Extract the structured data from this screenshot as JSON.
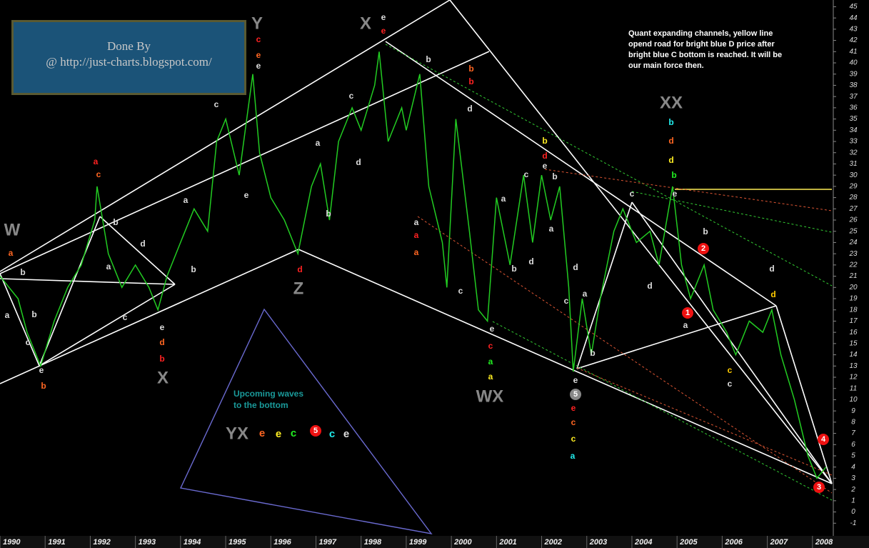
{
  "chart_data": {
    "type": "line",
    "color": "#22cc22",
    "x": [
      1990.0,
      1990.4,
      1990.6,
      1990.9,
      1991.2,
      1991.5,
      1991.8,
      1992.1,
      1992.15,
      1992.4,
      1992.7,
      1993.0,
      1993.3,
      1993.5,
      1993.7,
      1994.0,
      1994.3,
      1994.6,
      1994.8,
      1995.0,
      1995.3,
      1995.6,
      1995.75,
      1996.0,
      1996.3,
      1996.6,
      1996.9,
      1997.1,
      1997.3,
      1997.5,
      1997.8,
      1998.0,
      1998.3,
      1998.4,
      1998.6,
      1998.9,
      1999.0,
      1999.3,
      1999.5,
      1999.8,
      1999.9,
      2000.1,
      2000.4,
      2000.6,
      2000.8,
      2001.0,
      2001.3,
      2001.6,
      2001.8,
      2002.0,
      2002.2,
      2002.4,
      2002.6,
      2002.7,
      2002.9,
      2003.1,
      2003.3,
      2003.6,
      2003.8,
      2004.1,
      2004.4,
      2004.6,
      2004.9,
      2005.1,
      2005.3,
      2005.6,
      2005.8,
      2006.1,
      2006.3,
      2006.6,
      2006.9,
      2007.1,
      2007.3,
      2007.6,
      2007.9,
      2008.1,
      2008.3
    ],
    "values": [
      21,
      19,
      16,
      13,
      17,
      20,
      22,
      26,
      29,
      23,
      20,
      22,
      20,
      18,
      21,
      24,
      27,
      25,
      33,
      35,
      30,
      39,
      32,
      28,
      26,
      23,
      29,
      31,
      26,
      33,
      36,
      34,
      38,
      41,
      33,
      36,
      34,
      39,
      29,
      24,
      20,
      35,
      25,
      18,
      17,
      28,
      22,
      30,
      24,
      30,
      26,
      29,
      20,
      12.5,
      19,
      14,
      19,
      25,
      27,
      24,
      25,
      22,
      29,
      22,
      19,
      22,
      18,
      16,
      14,
      17,
      16,
      18,
      14,
      10,
      5,
      3,
      4
    ],
    "xlim": [
      1990,
      2008.43
    ],
    "ylim": [
      -2,
      45.6
    ],
    "xticks": [
      1990,
      1991,
      1992,
      1993,
      1994,
      1995,
      1996,
      1997,
      1998,
      1999,
      2000,
      2001,
      2002,
      2003,
      2004,
      2005,
      2006,
      2007,
      2008
    ],
    "yticks": [
      -1,
      0,
      1,
      2,
      3,
      4,
      5,
      6,
      7,
      8,
      9,
      10,
      11,
      12,
      13,
      14,
      15,
      16,
      17,
      18,
      19,
      20,
      21,
      22,
      23,
      24,
      25,
      26,
      27,
      28,
      29,
      30,
      31,
      32,
      33,
      34,
      35,
      36,
      37,
      38,
      39,
      40,
      41,
      42,
      43,
      44,
      45
    ],
    "watermark": [
      "Done By",
      "@ http://just-charts.blogspot.com/"
    ],
    "note": [
      "Quant expanding channels, yellow line",
      "opend road for bright blue D price after",
      "bright blue C bottom is reached. It will be",
      "our main force then."
    ],
    "upcoming": [
      "Upcoming waves",
      "to the bottom"
    ],
    "annotations": [
      {
        "text": "W",
        "color": "#888888"
      },
      {
        "text": "X",
        "color": "#888888"
      },
      {
        "text": "Y",
        "color": "#888888"
      },
      {
        "text": "Z",
        "color": "#888888"
      },
      {
        "text": "X",
        "color": "#888888"
      },
      {
        "text": "WX",
        "color": "#888888"
      },
      {
        "text": "XX",
        "color": "#888888"
      },
      {
        "text": "YX",
        "color": "#888888"
      },
      {
        "text": "a",
        "color": "#ff6622"
      },
      {
        "text": "b",
        "color": "#dddddd"
      },
      {
        "text": "a",
        "color": "#dddddd"
      },
      {
        "text": "b",
        "color": "#dddddd"
      },
      {
        "text": "c",
        "color": "#dddddd"
      },
      {
        "text": "e",
        "color": "#dddddd"
      },
      {
        "text": "b",
        "color": "#ff6622"
      },
      {
        "text": "a",
        "color": "#ff2222"
      },
      {
        "text": "c",
        "color": "#ff6622"
      },
      {
        "text": "b",
        "color": "#dddddd"
      },
      {
        "text": "a",
        "color": "#dddddd"
      },
      {
        "text": "d",
        "color": "#dddddd"
      },
      {
        "text": "c",
        "color": "#dddddd"
      },
      {
        "text": "e",
        "color": "#dddddd"
      },
      {
        "text": "d",
        "color": "#ff6622"
      },
      {
        "text": "b",
        "color": "#ff2222"
      },
      {
        "text": "a",
        "color": "#dddddd"
      },
      {
        "text": "b",
        "color": "#dddddd"
      },
      {
        "text": "c",
        "color": "#dddddd"
      },
      {
        "text": "c",
        "color": "#ff2222"
      },
      {
        "text": "e",
        "color": "#ff6622"
      },
      {
        "text": "e",
        "color": "#dddddd"
      },
      {
        "text": "e",
        "color": "#dddddd"
      },
      {
        "text": "a",
        "color": "#dddddd"
      },
      {
        "text": "b",
        "color": "#dddddd"
      },
      {
        "text": "d",
        "color": "#ff2222"
      },
      {
        "text": "c",
        "color": "#dddddd"
      },
      {
        "text": "d",
        "color": "#dddddd"
      },
      {
        "text": "e",
        "color": "#dddddd"
      },
      {
        "text": "e",
        "color": "#ff2222"
      },
      {
        "text": "b",
        "color": "#dddddd"
      },
      {
        "text": "b",
        "color": "#ff6622"
      },
      {
        "text": "b",
        "color": "#ff2222"
      },
      {
        "text": "d",
        "color": "#dddddd"
      },
      {
        "text": "a",
        "color": "#dddddd"
      },
      {
        "text": "a",
        "color": "#ff2222"
      },
      {
        "text": "a",
        "color": "#ff6622"
      },
      {
        "text": "c",
        "color": "#dddddd"
      },
      {
        "text": "a",
        "color": "#dddddd"
      },
      {
        "text": "e",
        "color": "#dddddd"
      },
      {
        "text": "c",
        "color": "#ff2222"
      },
      {
        "text": "a",
        "color": "#22ee22"
      },
      {
        "text": "a",
        "color": "#ffee22"
      },
      {
        "text": "b",
        "color": "#dddddd"
      },
      {
        "text": "d",
        "color": "#dddddd"
      },
      {
        "text": "c",
        "color": "#dddddd"
      },
      {
        "text": "b",
        "color": "#dddddd"
      },
      {
        "text": "e",
        "color": "#dddddd"
      },
      {
        "text": "b",
        "color": "#ffee22"
      },
      {
        "text": "d",
        "color": "#ff2222"
      },
      {
        "text": "a",
        "color": "#dddddd"
      },
      {
        "text": "c",
        "color": "#dddddd"
      },
      {
        "text": "d",
        "color": "#dddddd"
      },
      {
        "text": "a",
        "color": "#dddddd"
      },
      {
        "text": "b",
        "color": "#dddddd"
      },
      {
        "text": "e",
        "color": "#dddddd"
      },
      {
        "text": "5",
        "circle": "#888888"
      },
      {
        "text": "e",
        "color": "#ff2222"
      },
      {
        "text": "c",
        "color": "#ff6622"
      },
      {
        "text": "c",
        "color": "#ffee22"
      },
      {
        "text": "a",
        "color": "#22eeee"
      },
      {
        "text": "c",
        "color": "#dddddd"
      },
      {
        "text": "e",
        "color": "#dddddd"
      },
      {
        "text": "d",
        "color": "#dddddd"
      },
      {
        "text": "b",
        "color": "#22eeee"
      },
      {
        "text": "d",
        "color": "#ff6622"
      },
      {
        "text": "d",
        "color": "#ffee22"
      },
      {
        "text": "b",
        "color": "#22ee22"
      },
      {
        "text": "b",
        "color": "#dddddd"
      },
      {
        "text": "2",
        "circle": "#ee1111"
      },
      {
        "text": "1",
        "circle": "#ee1111"
      },
      {
        "text": "a",
        "color": "#dddddd"
      },
      {
        "text": "d",
        "color": "#dddddd"
      },
      {
        "text": "d",
        "color": "#ffcc00"
      },
      {
        "text": "c",
        "color": "#ffcc00"
      },
      {
        "text": "c",
        "color": "#dddddd"
      },
      {
        "text": "4",
        "circle": "#ee1111"
      },
      {
        "text": "3",
        "circle": "#ee1111"
      },
      {
        "text": "e",
        "color": "#ff6622"
      },
      {
        "text": "e",
        "color": "#ffee22"
      },
      {
        "text": "c",
        "color": "#22ee22"
      },
      {
        "text": "5",
        "circle": "#ee1111"
      },
      {
        "text": "c",
        "color": "#22eeee"
      },
      {
        "text": "e",
        "color": "#dddddd"
      }
    ]
  }
}
